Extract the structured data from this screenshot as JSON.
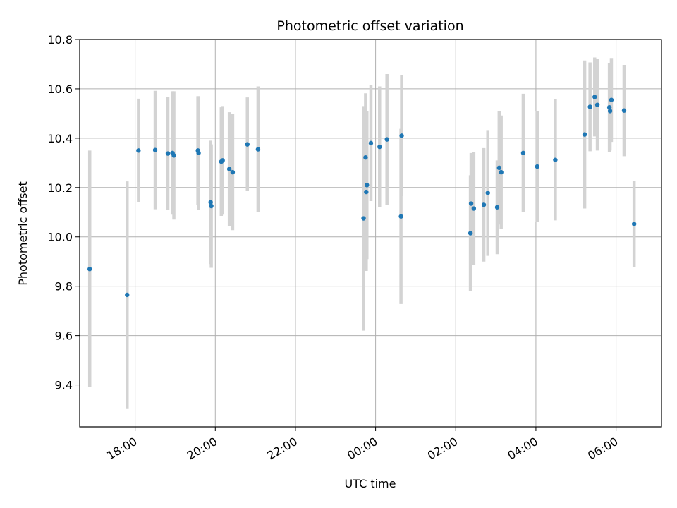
{
  "chart_data": {
    "type": "scatter",
    "title": "Photometric offset variation",
    "xlabel": "UTC time",
    "ylabel": "Photometric offset",
    "x_unit": "UTC time (hours after 00:00 of first day)",
    "xlim": [
      "16:37",
      "07:08"
    ],
    "ylim": [
      9.23,
      10.8
    ],
    "x_ticks": [
      "18:00",
      "20:00",
      "22:00",
      "00:00",
      "02:00",
      "04:00",
      "06:00"
    ],
    "y_ticks": [
      "9.4",
      "9.6",
      "9.8",
      "10.0",
      "10.2",
      "10.4",
      "10.6",
      "10.8"
    ],
    "grid": true,
    "colors": {
      "point": "#1f77b4",
      "errorbar": "#d3d3d3",
      "grid": "#b0b0b0"
    },
    "points": [
      {
        "x": "16:52",
        "y": 9.87,
        "err": 0.48
      },
      {
        "x": "17:48",
        "y": 9.765,
        "err": 0.46
      },
      {
        "x": "18:05",
        "y": 10.35,
        "err": 0.21
      },
      {
        "x": "18:30",
        "y": 10.352,
        "err": 0.24
      },
      {
        "x": "18:49",
        "y": 10.338,
        "err": 0.23
      },
      {
        "x": "18:56",
        "y": 10.34,
        "err": 0.25
      },
      {
        "x": "18:58",
        "y": 10.33,
        "err": 0.26
      },
      {
        "x": "19:34",
        "y": 10.35,
        "err": 0.22
      },
      {
        "x": "19:35",
        "y": 10.34,
        "err": 0.23
      },
      {
        "x": "19:53",
        "y": 10.14,
        "err": 0.25
      },
      {
        "x": "19:54",
        "y": 10.125,
        "err": 0.25
      },
      {
        "x": "20:09",
        "y": 10.305,
        "err": 0.22
      },
      {
        "x": "20:11",
        "y": 10.31,
        "err": 0.22
      },
      {
        "x": "20:21",
        "y": 10.275,
        "err": 0.23
      },
      {
        "x": "20:26",
        "y": 10.262,
        "err": 0.235
      },
      {
        "x": "20:48",
        "y": 10.375,
        "err": 0.19
      },
      {
        "x": "21:04",
        "y": 10.355,
        "err": 0.255
      },
      {
        "x": "23:42",
        "y": 10.075,
        "err": 0.455
      },
      {
        "x": "23:45",
        "y": 10.322,
        "err": 0.26
      },
      {
        "x": "23:46",
        "y": 10.182,
        "err": 0.32
      },
      {
        "x": "23:47",
        "y": 10.21,
        "err": 0.3
      },
      {
        "x": "23:53",
        "y": 10.38,
        "err": 0.235
      },
      {
        "x": "00:06",
        "y": 10.365,
        "err": 0.245
      },
      {
        "x": "00:17",
        "y": 10.395,
        "err": 0.265
      },
      {
        "x": "00:38",
        "y": 10.083,
        "err": 0.355
      },
      {
        "x": "00:39",
        "y": 10.41,
        "err": 0.245
      },
      {
        "x": "02:22",
        "y": 10.015,
        "err": 0.235
      },
      {
        "x": "02:23",
        "y": 10.135,
        "err": 0.205
      },
      {
        "x": "02:27",
        "y": 10.115,
        "err": 0.23
      },
      {
        "x": "02:42",
        "y": 10.13,
        "err": 0.23
      },
      {
        "x": "02:48",
        "y": 10.178,
        "err": 0.255
      },
      {
        "x": "03:02",
        "y": 10.12,
        "err": 0.19
      },
      {
        "x": "03:05",
        "y": 10.28,
        "err": 0.23
      },
      {
        "x": "03:08",
        "y": 10.262,
        "err": 0.23
      },
      {
        "x": "03:41",
        "y": 10.34,
        "err": 0.24
      },
      {
        "x": "04:02",
        "y": 10.285,
        "err": 0.225
      },
      {
        "x": "04:29",
        "y": 10.312,
        "err": 0.245
      },
      {
        "x": "05:13",
        "y": 10.415,
        "err": 0.3
      },
      {
        "x": "05:21",
        "y": 10.527,
        "err": 0.18
      },
      {
        "x": "05:28",
        "y": 10.567,
        "err": 0.16
      },
      {
        "x": "05:32",
        "y": 10.535,
        "err": 0.185
      },
      {
        "x": "05:50",
        "y": 10.525,
        "err": 0.18
      },
      {
        "x": "05:51",
        "y": 10.51,
        "err": 0.16
      },
      {
        "x": "05:53",
        "y": 10.555,
        "err": 0.17
      },
      {
        "x": "06:12",
        "y": 10.512,
        "err": 0.185
      },
      {
        "x": "06:27",
        "y": 10.052,
        "err": 0.175
      }
    ]
  }
}
